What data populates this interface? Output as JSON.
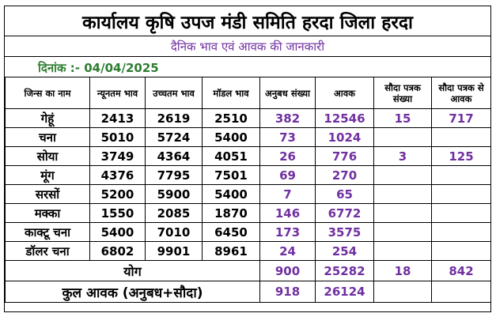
{
  "header": {
    "title": "कार्यालय कृषि उपज मंडी समिति हरदा जिला हरदा",
    "subtitle": "दैनिक भाव एवं आवक की जानकारी",
    "date_label": "दिनांक :- 04/04/2025"
  },
  "table": {
    "columns": [
      "जिन्स का नाम",
      "न्यूनतम भाव",
      "उच्चतम भाव",
      "मॉडल भाव",
      "अनुबध संख्या",
      "आवक",
      "सौदा पत्रक संख्या",
      "सौदा पत्रक से आवक"
    ],
    "rows": [
      {
        "crop": "गेहूं",
        "min": "2413",
        "max": "2619",
        "model": "2510",
        "anubadh": "382",
        "aavak": "12546",
        "sauda_count": "15",
        "sauda_aavak": "717"
      },
      {
        "crop": "चना",
        "min": "5010",
        "max": "5724",
        "model": "5400",
        "anubadh": "73",
        "aavak": "1024",
        "sauda_count": "",
        "sauda_aavak": ""
      },
      {
        "crop": "सोया",
        "min": "3749",
        "max": "4364",
        "model": "4051",
        "anubadh": "26",
        "aavak": "776",
        "sauda_count": "3",
        "sauda_aavak": "125"
      },
      {
        "crop": "मूंग",
        "min": "4376",
        "max": "7795",
        "model": "7501",
        "anubadh": "69",
        "aavak": "270",
        "sauda_count": "",
        "sauda_aavak": ""
      },
      {
        "crop": "सरसों",
        "min": "5200",
        "max": "5900",
        "model": "5400",
        "anubadh": "7",
        "aavak": "65",
        "sauda_count": "",
        "sauda_aavak": ""
      },
      {
        "crop": "मक्का",
        "min": "1550",
        "max": "2085",
        "model": "1870",
        "anubadh": "146",
        "aavak": "6772",
        "sauda_count": "",
        "sauda_aavak": ""
      },
      {
        "crop": "काक्टू चना",
        "min": "5400",
        "max": "7010",
        "model": "6450",
        "anubadh": "173",
        "aavak": "3575",
        "sauda_count": "",
        "sauda_aavak": ""
      },
      {
        "crop": "डॉलर चना",
        "min": "6802",
        "max": "9901",
        "model": "8961",
        "anubadh": "24",
        "aavak": "254",
        "sauda_count": "",
        "sauda_aavak": ""
      }
    ],
    "sum": {
      "label": "योग",
      "anubadh": "900",
      "aavak": "25282",
      "sauda_count": "18",
      "sauda_aavak": "842"
    },
    "total": {
      "label": "कुल आवक (अनुबध+सौदा)",
      "anubadh": "918",
      "aavak": "26124"
    }
  },
  "colors": {
    "accent": "#7030a0",
    "date": "#2e7d32",
    "band": "#e8eef7"
  }
}
